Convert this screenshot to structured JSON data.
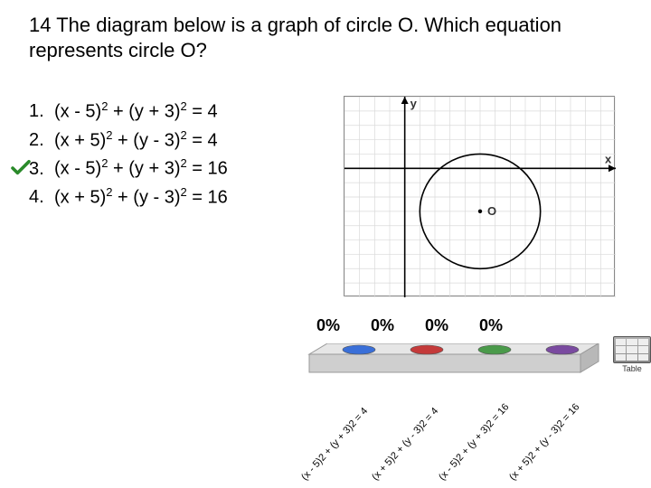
{
  "question": {
    "number": "14",
    "text": "The diagram below is a graph of circle O. Which equation represents circle O?"
  },
  "options": [
    {
      "num": "1.",
      "eq_a": "(x - 5)",
      "eq_b": " + (y + 3)",
      "rhs": " = 4"
    },
    {
      "num": "2.",
      "eq_a": "(x + 5)",
      "eq_b": " + (y - 3)",
      "rhs": " = 4"
    },
    {
      "num": "3.",
      "eq_a": "(x - 5)",
      "eq_b": " + (y + 3)",
      "rhs": " = 16"
    },
    {
      "num": "4.",
      "eq_a": "(x + 5)",
      "eq_b": " + (y - 3)",
      "rhs": " = 16"
    }
  ],
  "correct_index": 2,
  "checkmark_color": "#2a8a2a",
  "graph": {
    "x_axis_label": "x",
    "y_axis_label": "y",
    "center_label": "O",
    "grid_range_x": [
      -4,
      14
    ],
    "grid_range_y": [
      -9,
      5
    ],
    "grid_step": 1,
    "circle_center": [
      5,
      -3
    ],
    "circle_radius": 4,
    "axis_color": "#000000",
    "grid_color": "#d9d9d9",
    "circle_color": "#000000",
    "label_color": "#333333"
  },
  "chart": {
    "type": "bar",
    "percents": [
      "0%",
      "0%",
      "0%",
      "0%"
    ],
    "platform_fill": "#cfcfcf",
    "platform_top": "#e6e6e6",
    "circle_colors": [
      "#3a6fd8",
      "#c43a3a",
      "#4a9a4a",
      "#7a4aa0"
    ],
    "labels": [
      "(x - 5)2 + (y + 3)2 = 4",
      "(x + 5)2 + (y - 3)2 = 4",
      "(x - 5)2 + (y + 3)2 = 16",
      "(x + 5)2 + (y - 3)2 = 16"
    ],
    "table_label": "Table"
  }
}
